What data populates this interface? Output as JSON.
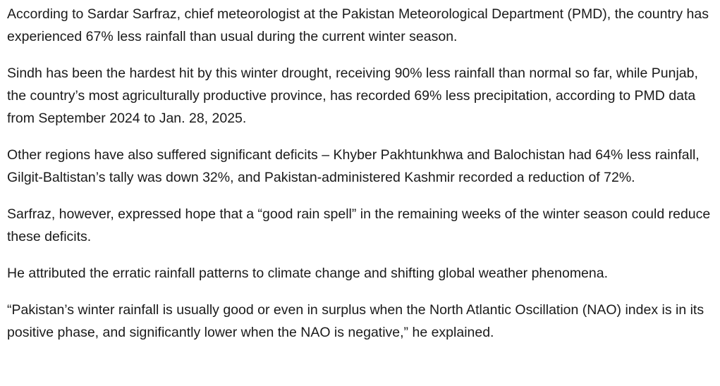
{
  "article": {
    "paragraphs": [
      "According to Sardar Sarfraz, chief meteorologist at the Pakistan Meteorological Department (PMD), the country has experienced 67% less rainfall than usual during the current winter season.",
      "Sindh has been the hardest hit by this winter drought, receiving 90% less rainfall than normal so far, while Punjab, the country’s most agriculturally productive province, has recorded 69% less precipitation, according to PMD data from September 2024 to Jan. 28, 2025.",
      "Other regions have also suffered significant deficits – Khyber Pakhtunkhwa and Balochistan had 64% less rainfall, Gilgit-Baltistan’s tally was down 32%, and Pakistan-administered Kashmir recorded a reduction of 72%.",
      "Sarfraz, however, expressed hope that a “good rain spell” in the remaining weeks of the winter season could reduce these deficits.",
      "He attributed the erratic rainfall patterns to climate change and shifting global weather phenomena.",
      "“Pakistan’s winter rainfall is usually good or even in surplus when the North Atlantic Oscillation (NAO) index is in its positive phase, and significantly lower when the NAO is negative,” he explained."
    ]
  }
}
